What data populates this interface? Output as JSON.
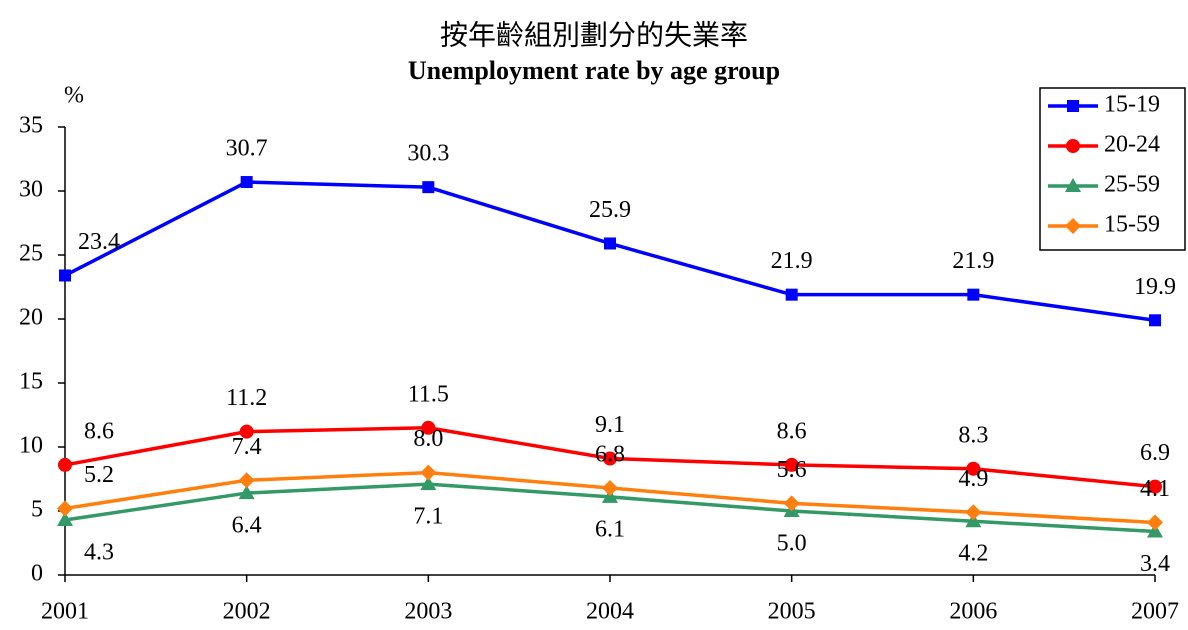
{
  "chart_data": {
    "type": "line",
    "title": "按年齡組別劃分的失業率",
    "subtitle": "Unemployment rate by age group",
    "y_label": "%",
    "categories": [
      "2001",
      "2002",
      "2003",
      "2004",
      "2005",
      "2006",
      "2007"
    ],
    "ylim": [
      0,
      35
    ],
    "yticks": [
      0,
      5,
      10,
      15,
      20,
      25,
      30,
      35
    ],
    "legend": "top-right",
    "series": [
      {
        "name": "15-19",
        "color": "#0000ff",
        "marker": "square",
        "label_position": "above",
        "values": [
          23.4,
          30.7,
          30.3,
          25.9,
          21.9,
          21.9,
          19.9
        ],
        "value_labels": [
          "23.4",
          "30.7",
          "30.3",
          "25.9",
          "21.9",
          "21.9",
          "19.9"
        ]
      },
      {
        "name": "20-24",
        "color": "#ff0000",
        "marker": "circle",
        "label_position": "above",
        "values": [
          8.6,
          11.2,
          11.5,
          9.1,
          8.6,
          8.3,
          6.9
        ],
        "value_labels": [
          "8.6",
          "11.2",
          "11.5",
          "9.1",
          "8.6",
          "8.3",
          "6.9"
        ]
      },
      {
        "name": "25-59",
        "color": "#339966",
        "marker": "triangle",
        "label_position": "below",
        "values": [
          4.3,
          6.4,
          7.1,
          6.1,
          5.0,
          4.2,
          3.4
        ],
        "value_labels": [
          "4.3",
          "6.4",
          "7.1",
          "6.1",
          "5.0",
          "4.2",
          "3.4"
        ]
      },
      {
        "name": "15-59",
        "color": "#ff7f0e",
        "marker": "diamond",
        "label_position": "above",
        "values": [
          5.2,
          7.4,
          8.0,
          6.8,
          5.6,
          4.9,
          4.1
        ],
        "value_labels": [
          "5.2",
          "7.4",
          "8.0",
          "6.8",
          "5.6",
          "4.9",
          "4.1"
        ]
      }
    ]
  }
}
